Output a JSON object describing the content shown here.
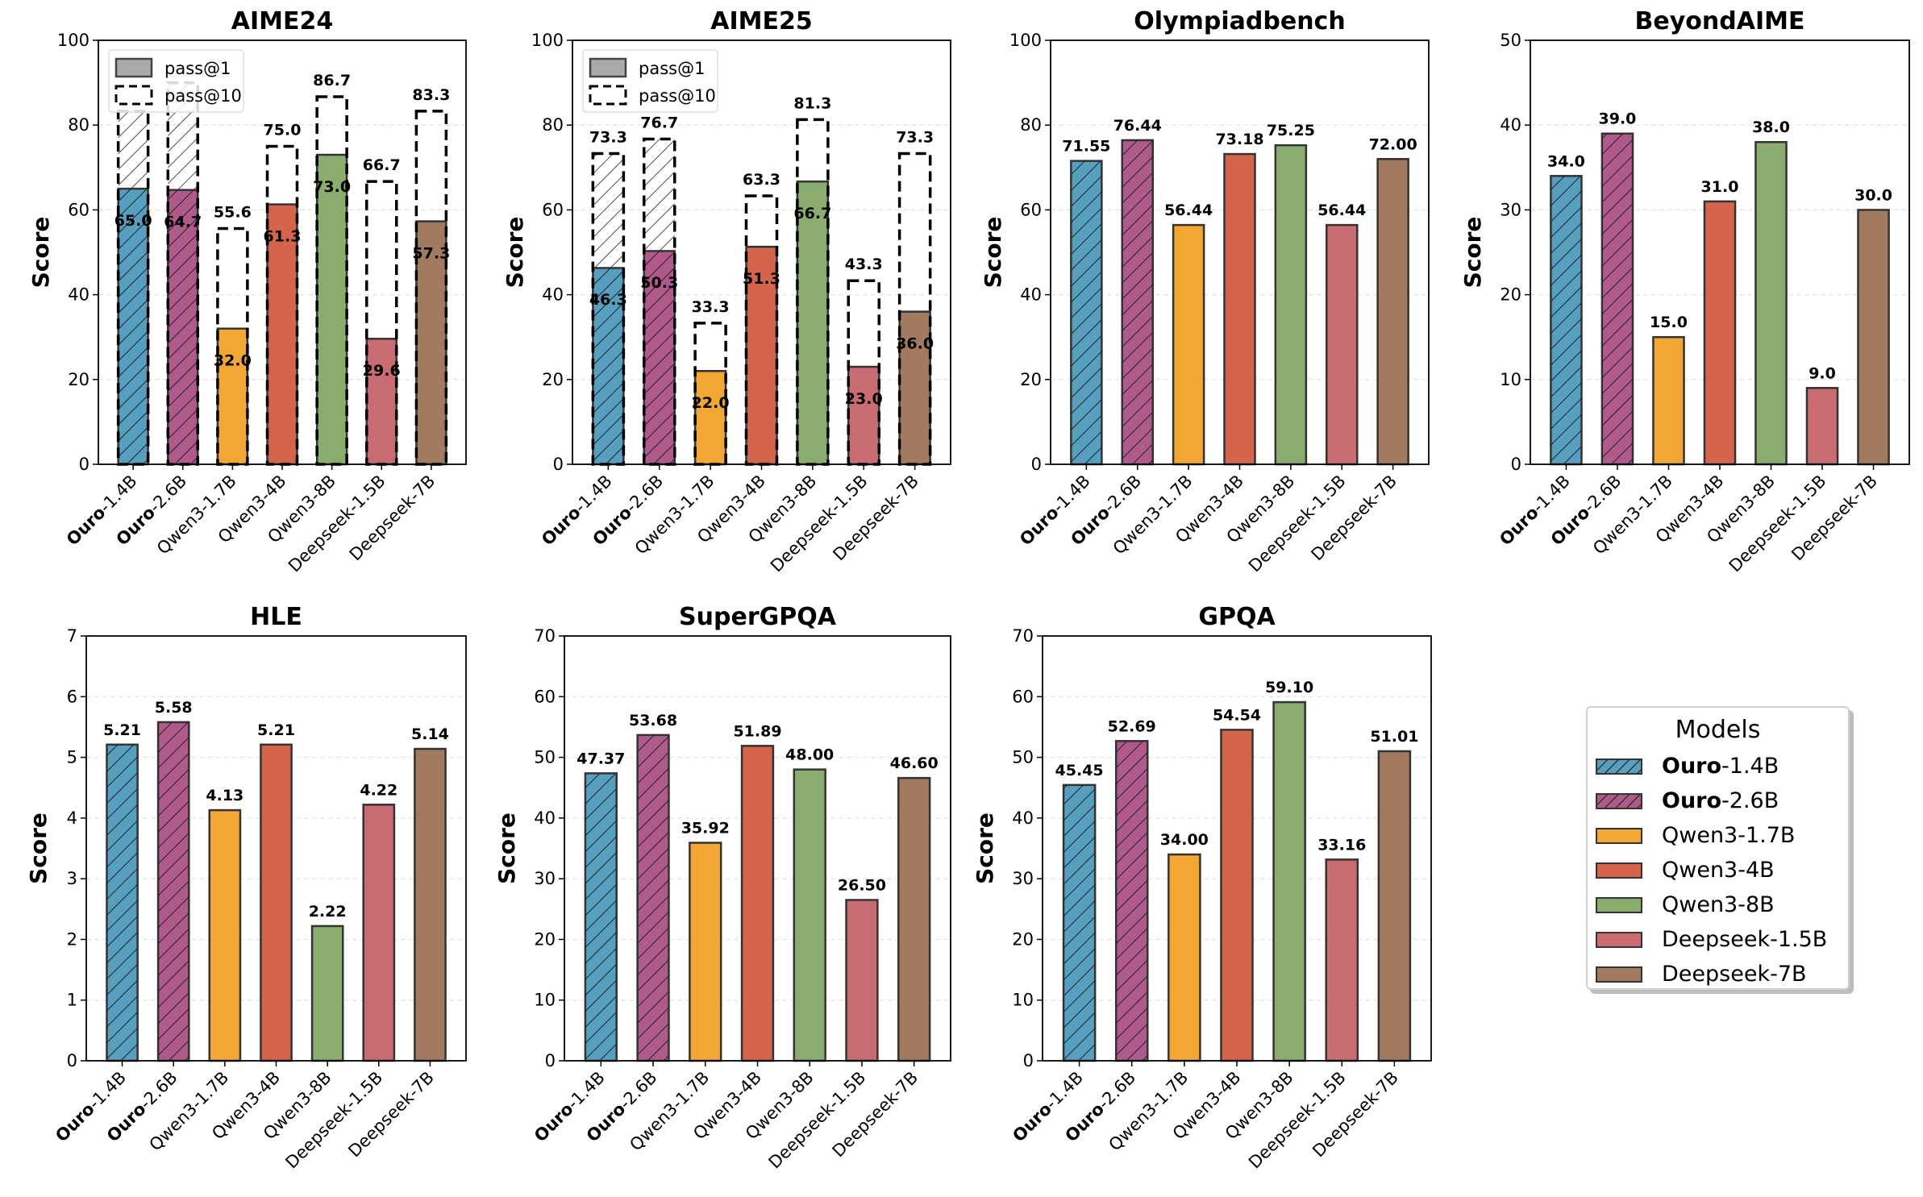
{
  "legend": {
    "title": "Models",
    "items": [
      "Ouro-1.4B",
      "Ouro-2.6B",
      "Qwen3-1.7B",
      "Qwen3-4B",
      "Qwen3-8B",
      "Deepseek-1.5B",
      "Deepseek-7B"
    ]
  },
  "bold_prefix": "Ouro",
  "colors": [
    "#569fbf",
    "#b05a8c",
    "#f2a634",
    "#d4644a",
    "#8aad6f",
    "#c96c72",
    "#a27a60"
  ],
  "hatched": [
    true,
    true,
    false,
    false,
    false,
    false,
    false
  ],
  "chart_data": [
    {
      "type": "bar",
      "title": "AIME24",
      "ylabel": "Score",
      "ylim": [
        0,
        100
      ],
      "yticks": [
        "0",
        "20",
        "40",
        "60",
        "80",
        "100"
      ],
      "grid": true,
      "categories": [
        "Ouro-1.4B",
        "Ouro-2.6B",
        "Qwen3-1.7B",
        "Qwen3-4B",
        "Qwen3-8B",
        "Deepseek-1.5B",
        "Deepseek-7B"
      ],
      "series": [
        {
          "name": "pass@1",
          "values": [
            65.0,
            64.7,
            32.0,
            61.3,
            73.0,
            29.6,
            57.3
          ],
          "labels": [
            "65.0",
            "64.7",
            "32.0",
            "61.3",
            "73.0",
            "29.6",
            "57.3"
          ]
        },
        {
          "name": "pass@10",
          "values": [
            83.3,
            90.0,
            55.6,
            75.0,
            86.7,
            66.7,
            83.3
          ],
          "labels": [
            "",
            "",
            "55.6",
            "75.0",
            "86.7",
            "66.7",
            "83.3"
          ]
        }
      ],
      "legend_placement": "top-left"
    },
    {
      "type": "bar",
      "title": "AIME25",
      "ylabel": "Score",
      "ylim": [
        0,
        100
      ],
      "yticks": [
        "0",
        "20",
        "40",
        "60",
        "80",
        "100"
      ],
      "grid": true,
      "categories": [
        "Ouro-1.4B",
        "Ouro-2.6B",
        "Qwen3-1.7B",
        "Qwen3-4B",
        "Qwen3-8B",
        "Deepseek-1.5B",
        "Deepseek-7B"
      ],
      "series": [
        {
          "name": "pass@1",
          "values": [
            46.3,
            50.3,
            22.0,
            51.3,
            66.7,
            23.0,
            36.0
          ],
          "labels": [
            "46.3",
            "50.3",
            "22.0",
            "51.3",
            "66.7",
            "23.0",
            "36.0"
          ]
        },
        {
          "name": "pass@10",
          "values": [
            73.3,
            76.7,
            33.3,
            63.3,
            81.3,
            43.3,
            73.3
          ],
          "labels": [
            "73.3",
            "76.7",
            "33.3",
            "63.3",
            "81.3",
            "43.3",
            "73.3"
          ]
        }
      ],
      "legend_placement": "top-left"
    },
    {
      "type": "bar",
      "title": "Olympiadbench",
      "ylabel": "Score",
      "ylim": [
        0,
        100
      ],
      "yticks": [
        "0",
        "20",
        "40",
        "60",
        "80",
        "100"
      ],
      "grid": true,
      "categories": [
        "Ouro-1.4B",
        "Ouro-2.6B",
        "Qwen3-1.7B",
        "Qwen3-4B",
        "Qwen3-8B",
        "Deepseek-1.5B",
        "Deepseek-7B"
      ],
      "series": [
        {
          "values": [
            71.55,
            76.44,
            56.44,
            73.18,
            75.25,
            56.44,
            72.0
          ],
          "labels": [
            "71.55",
            "76.44",
            "56.44",
            "73.18",
            "75.25",
            "56.44",
            "72.00"
          ]
        }
      ]
    },
    {
      "type": "bar",
      "title": "BeyondAIME",
      "ylabel": "Score",
      "ylim": [
        0,
        50
      ],
      "yticks": [
        "0",
        "10",
        "20",
        "30",
        "40",
        "50"
      ],
      "grid": true,
      "categories": [
        "Ouro-1.4B",
        "Ouro-2.6B",
        "Qwen3-1.7B",
        "Qwen3-4B",
        "Qwen3-8B",
        "Deepseek-1.5B",
        "Deepseek-7B"
      ],
      "series": [
        {
          "values": [
            34.0,
            39.0,
            15.0,
            31.0,
            38.0,
            9.0,
            30.0
          ],
          "labels": [
            "34.0",
            "39.0",
            "15.0",
            "31.0",
            "38.0",
            "9.0",
            "30.0"
          ]
        }
      ]
    },
    {
      "type": "bar",
      "title": "HLE",
      "ylabel": "Score",
      "ylim": [
        0,
        7
      ],
      "yticks": [
        "0",
        "1",
        "2",
        "3",
        "4",
        "5",
        "6",
        "7"
      ],
      "grid": true,
      "categories": [
        "Ouro-1.4B",
        "Ouro-2.6B",
        "Qwen3-1.7B",
        "Qwen3-4B",
        "Qwen3-8B",
        "Deepseek-1.5B",
        "Deepseek-7B"
      ],
      "series": [
        {
          "values": [
            5.21,
            5.58,
            4.13,
            5.21,
            2.22,
            4.22,
            5.14
          ],
          "labels": [
            "5.21",
            "5.58",
            "4.13",
            "5.21",
            "2.22",
            "4.22",
            "5.14"
          ]
        }
      ]
    },
    {
      "type": "bar",
      "title": "SuperGPQA",
      "ylabel": "Score",
      "ylim": [
        0,
        70
      ],
      "yticks": [
        "0",
        "10",
        "20",
        "30",
        "40",
        "50",
        "60",
        "70"
      ],
      "grid": true,
      "categories": [
        "Ouro-1.4B",
        "Ouro-2.6B",
        "Qwen3-1.7B",
        "Qwen3-4B",
        "Qwen3-8B",
        "Deepseek-1.5B",
        "Deepseek-7B"
      ],
      "series": [
        {
          "values": [
            47.37,
            53.68,
            35.92,
            51.89,
            48.0,
            26.5,
            46.6
          ],
          "labels": [
            "47.37",
            "53.68",
            "35.92",
            "51.89",
            "48.00",
            "26.50",
            "46.60"
          ]
        }
      ]
    },
    {
      "type": "bar",
      "title": "GPQA",
      "ylabel": "Score",
      "ylim": [
        0,
        70
      ],
      "yticks": [
        "0",
        "10",
        "20",
        "30",
        "40",
        "50",
        "60",
        "70"
      ],
      "grid": true,
      "categories": [
        "Ouro-1.4B",
        "Ouro-2.6B",
        "Qwen3-1.7B",
        "Qwen3-4B",
        "Qwen3-8B",
        "Deepseek-1.5B",
        "Deepseek-7B"
      ],
      "series": [
        {
          "values": [
            45.45,
            52.69,
            34.0,
            54.54,
            59.1,
            33.16,
            51.01
          ],
          "labels": [
            "45.45",
            "52.69",
            "34.00",
            "54.54",
            "59.10",
            "33.16",
            "51.01"
          ]
        }
      ]
    }
  ]
}
